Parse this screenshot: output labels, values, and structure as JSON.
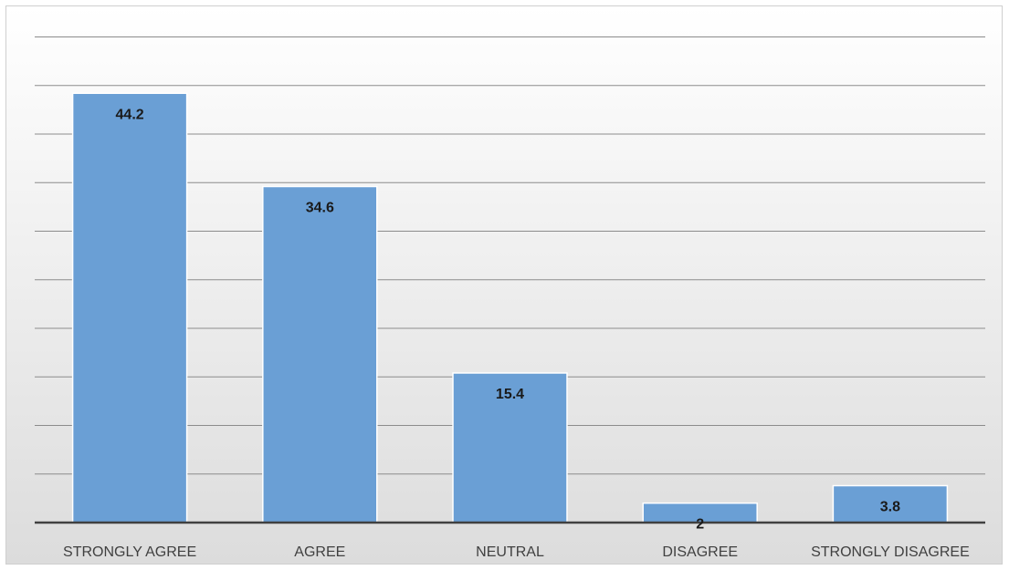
{
  "chart_data": {
    "type": "bar",
    "title": "",
    "xlabel": "",
    "ylabel": "",
    "categories": [
      "STRONGLY AGREE",
      "AGREE",
      "NEUTRAL",
      "DISAGREE",
      "STRONGLY DISAGREE"
    ],
    "values": [
      44.2,
      34.6,
      15.4,
      2,
      3.8
    ],
    "data_labels": [
      "44.2",
      "34.6",
      "15.4",
      "2",
      "3.8"
    ],
    "ylim": [
      0,
      50
    ],
    "y_grid_step": 5,
    "grid": true,
    "legend": "none",
    "colors": {
      "bar_fill": "#6a9fd5",
      "bar_edge": "#ffffff",
      "gridline": "#8c8c8c",
      "axis": "#404040",
      "background_top": "#ffffff",
      "background_bottom": "#dcdcdc"
    }
  }
}
